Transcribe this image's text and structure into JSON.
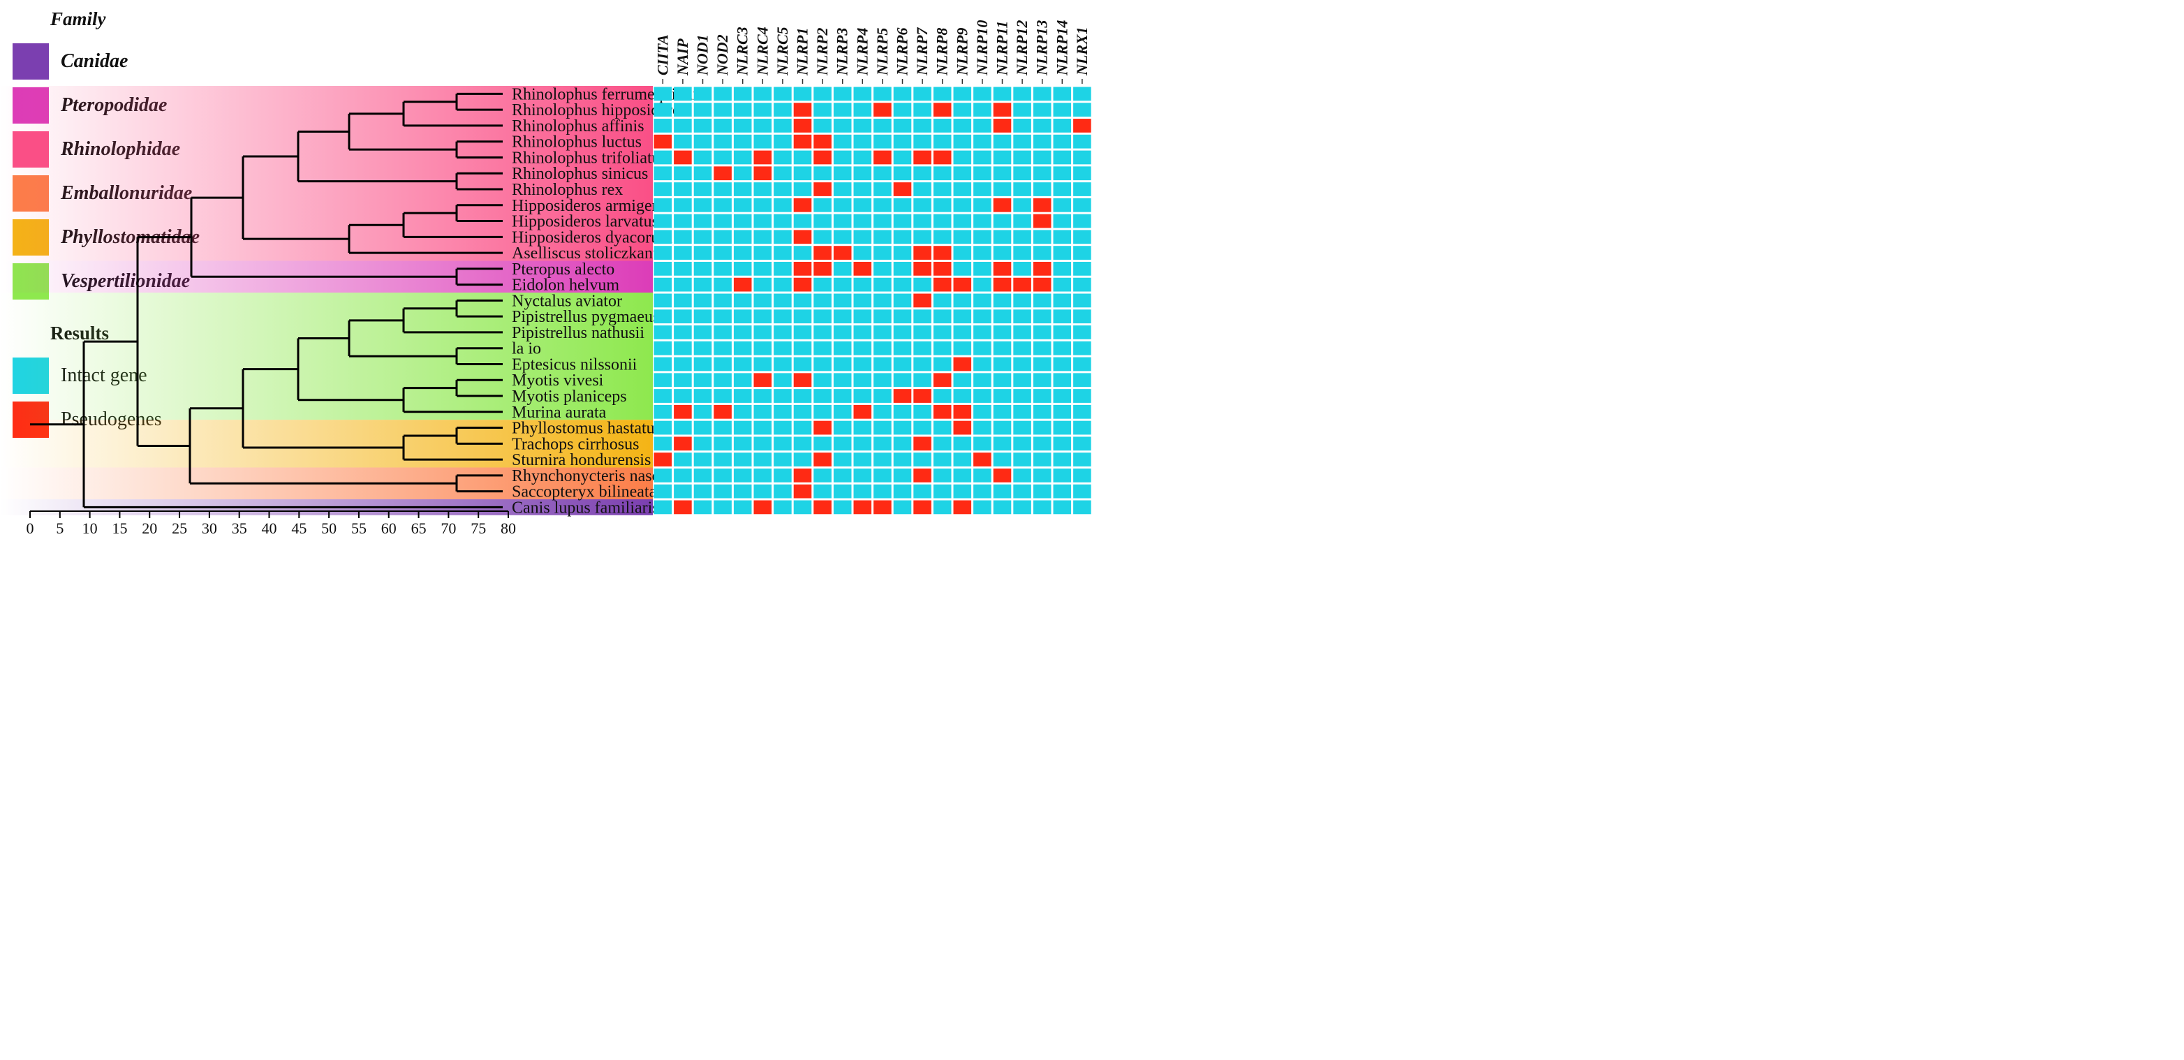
{
  "legend": {
    "family_title": "Family",
    "families": [
      {
        "name": "Canidae",
        "color": "#7b3fb0"
      },
      {
        "name": "Pteropodidae",
        "color": "#dc3cb8"
      },
      {
        "name": "Rhinolophidae",
        "color": "#fa4f86"
      },
      {
        "name": "Emballonuridae",
        "color": "#fc7e48"
      },
      {
        "name": "Phyllostomatidae",
        "color": "#f4b415"
      },
      {
        "name": "Vespertilionidae",
        "color": "#8ee84e"
      }
    ],
    "results_title": "Results",
    "results": [
      {
        "name": "Intact gene",
        "color": "#1ed3e5"
      },
      {
        "name": "Pseudogenes",
        "color": "#ff2a14"
      }
    ]
  },
  "axis": {
    "ticks": [
      "0",
      "5",
      "10",
      "15",
      "20",
      "25",
      "30",
      "35",
      "40",
      "45",
      "50",
      "55",
      "60",
      "65",
      "70",
      "75",
      "80"
    ]
  },
  "genes": [
    "CIITA",
    "NAIP",
    "NOD1",
    "NOD2",
    "NLRC3",
    "NLRC4",
    "NLRC5",
    "NLRP1",
    "NLRP2",
    "NLRP3",
    "NLRP4",
    "NLRP5",
    "NLRP6",
    "NLRP7",
    "NLRP8",
    "NLRP9",
    "NLRP10",
    "NLRP11",
    "NLRP12",
    "NLRP13",
    "NLRP14",
    "NLRX1"
  ],
  "species": [
    {
      "name": "Rhinolophus ferrumequinum",
      "family": "Rhinolophidae",
      "pseudo": []
    },
    {
      "name": "Rhinolophus hipposideros",
      "family": "Rhinolophidae",
      "pseudo": [
        7,
        11,
        14,
        17
      ]
    },
    {
      "name": "Rhinolophus affinis",
      "family": "Rhinolophidae",
      "pseudo": [
        7,
        17,
        21
      ]
    },
    {
      "name": "Rhinolophus luctus",
      "family": "Rhinolophidae",
      "pseudo": [
        0,
        7,
        8
      ]
    },
    {
      "name": "Rhinolophus trifoliatus",
      "family": "Rhinolophidae",
      "pseudo": [
        1,
        5,
        8,
        11,
        13,
        14
      ]
    },
    {
      "name": "Rhinolophus sinicus",
      "family": "Rhinolophidae",
      "pseudo": [
        3,
        5
      ]
    },
    {
      "name": "Rhinolophus rex",
      "family": "Rhinolophidae",
      "pseudo": [
        8,
        12
      ]
    },
    {
      "name": "Hipposideros armiger",
      "family": "Rhinolophidae",
      "pseudo": [
        7,
        17,
        19
      ]
    },
    {
      "name": "Hipposideros larvatus",
      "family": "Rhinolophidae",
      "pseudo": [
        19
      ]
    },
    {
      "name": "Hipposideros dyacorum",
      "family": "Rhinolophidae",
      "pseudo": [
        7
      ]
    },
    {
      "name": "Aselliscus stoliczkanus",
      "family": "Rhinolophidae",
      "pseudo": [
        8,
        9,
        13,
        14
      ]
    },
    {
      "name": "Pteropus alecto",
      "family": "Pteropodidae",
      "pseudo": [
        7,
        8,
        10,
        13,
        14,
        17,
        19
      ]
    },
    {
      "name": "Eidolon helvum",
      "family": "Pteropodidae",
      "pseudo": [
        4,
        7,
        14,
        15,
        17,
        18,
        19
      ]
    },
    {
      "name": "Nyctalus aviator",
      "family": "Vespertilionidae",
      "pseudo": [
        13
      ]
    },
    {
      "name": "Pipistrellus pygmaeus",
      "family": "Vespertilionidae",
      "pseudo": []
    },
    {
      "name": "Pipistrellus nathusii",
      "family": "Vespertilionidae",
      "pseudo": []
    },
    {
      "name": "la io",
      "family": "Vespertilionidae",
      "pseudo": []
    },
    {
      "name": "Eptesicus nilssonii",
      "family": "Vespertilionidae",
      "pseudo": [
        15
      ]
    },
    {
      "name": "Myotis vivesi",
      "family": "Vespertilionidae",
      "pseudo": [
        5,
        7,
        14
      ]
    },
    {
      "name": "Myotis planiceps",
      "family": "Vespertilionidae",
      "pseudo": [
        12,
        13
      ]
    },
    {
      "name": "Murina aurata",
      "family": "Vespertilionidae",
      "pseudo": [
        1,
        3,
        10,
        14,
        15
      ]
    },
    {
      "name": "Phyllostomus hastatus",
      "family": "Phyllostomatidae",
      "pseudo": [
        8,
        15
      ]
    },
    {
      "name": "Trachops cirrhosus",
      "family": "Phyllostomatidae",
      "pseudo": [
        1,
        13
      ]
    },
    {
      "name": "Sturnira hondurensis",
      "family": "Phyllostomatidae",
      "pseudo": [
        0,
        8,
        16
      ]
    },
    {
      "name": "Rhynchonycteris naso",
      "family": "Emballonuridae",
      "pseudo": [
        7,
        13,
        17
      ]
    },
    {
      "name": "Saccopteryx bilineata",
      "family": "Emballonuridae",
      "pseudo": [
        7
      ]
    },
    {
      "name": "Canis lupus familiaris",
      "family": "Canidae",
      "pseudo": [
        1,
        5,
        8,
        10,
        11,
        13,
        15
      ]
    }
  ]
}
